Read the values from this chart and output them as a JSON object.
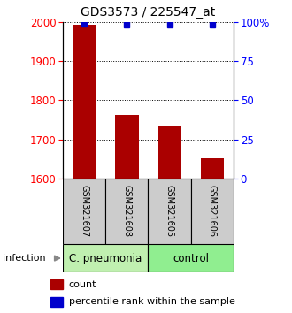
{
  "title": "GDS3573 / 225547_at",
  "samples": [
    "GSM321607",
    "GSM321608",
    "GSM321605",
    "GSM321606"
  ],
  "counts": [
    1993,
    1762,
    1733,
    1651
  ],
  "percentile_ranks": [
    99,
    98,
    98,
    98
  ],
  "bar_color": "#aa0000",
  "dot_color": "#0000cc",
  "ylim_left": [
    1600,
    2000
  ],
  "ylim_right": [
    0,
    100
  ],
  "yticks_left": [
    1600,
    1700,
    1800,
    1900,
    2000
  ],
  "yticks_right": [
    0,
    25,
    50,
    75,
    100
  ],
  "sample_box_color": "#cccccc",
  "cpneumonia_color": "#c0f0b0",
  "control_color": "#90ee90",
  "infection_label": "infection",
  "legend_count_label": "count",
  "legend_pct_label": "percentile rank within the sample",
  "title_fontsize": 10,
  "tick_fontsize": 8.5,
  "label_fontsize": 8,
  "bar_width": 0.55
}
